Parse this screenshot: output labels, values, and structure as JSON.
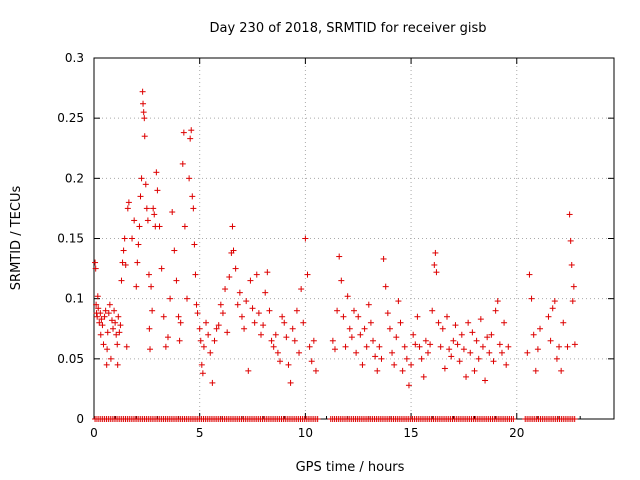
{
  "chart_data": {
    "type": "scatter",
    "title": "Day 230 of 2018, SRMTID for receiver gisb",
    "xlabel": "GPS time / hours",
    "ylabel": "SRMTID / TECUs",
    "xlim": [
      0,
      24.6
    ],
    "ylim": [
      0,
      0.3
    ],
    "xticks": [
      0,
      5,
      10,
      15,
      20
    ],
    "xtick_labels": [
      "0",
      "5",
      "10",
      "15",
      "20"
    ],
    "yticks": [
      0,
      0.05,
      0.1,
      0.15,
      0.2,
      0.25,
      0.3
    ],
    "ytick_labels": [
      "0",
      "0.05",
      "0.1",
      "0.15",
      "0.2",
      "0.25",
      "0.3"
    ],
    "grid": true,
    "marker": "+",
    "color": "#dd0000",
    "series": [
      {
        "name": "SRMTID",
        "points": [
          [
            0.05,
            0.13
          ],
          [
            0.08,
            0.125
          ],
          [
            0.1,
            0.095
          ],
          [
            0.12,
            0.088
          ],
          [
            0.15,
            0.085
          ],
          [
            0.18,
            0.102
          ],
          [
            0.2,
            0.092
          ],
          [
            0.25,
            0.08
          ],
          [
            0.3,
            0.088
          ],
          [
            0.32,
            0.07
          ],
          [
            0.35,
            0.083
          ],
          [
            0.4,
            0.078
          ],
          [
            0.45,
            0.062
          ],
          [
            0.5,
            0.085
          ],
          [
            0.55,
            0.09
          ],
          [
            0.6,
            0.045
          ],
          [
            0.62,
            0.058
          ],
          [
            0.65,
            0.072
          ],
          [
            0.7,
            0.088
          ],
          [
            0.75,
            0.095
          ],
          [
            0.8,
            0.05
          ],
          [
            0.85,
            0.082
          ],
          [
            0.9,
            0.075
          ],
          [
            0.95,
            0.09
          ],
          [
            1.0,
            0.08
          ],
          [
            1.05,
            0.07
          ],
          [
            1.1,
            0.062
          ],
          [
            1.12,
            0.045
          ],
          [
            1.15,
            0.085
          ],
          [
            1.2,
            0.072
          ],
          [
            1.25,
            0.078
          ],
          [
            1.3,
            0.115
          ],
          [
            1.35,
            0.13
          ],
          [
            1.4,
            0.14
          ],
          [
            1.45,
            0.15
          ],
          [
            1.5,
            0.128
          ],
          [
            1.55,
            0.06
          ],
          [
            1.6,
            0.175
          ],
          [
            1.65,
            0.18
          ],
          [
            1.8,
            0.15
          ],
          [
            1.9,
            0.165
          ],
          [
            2.0,
            0.11
          ],
          [
            2.05,
            0.13
          ],
          [
            2.1,
            0.145
          ],
          [
            2.15,
            0.16
          ],
          [
            2.2,
            0.185
          ],
          [
            2.25,
            0.2
          ],
          [
            2.3,
            0.272
          ],
          [
            2.32,
            0.262
          ],
          [
            2.35,
            0.255
          ],
          [
            2.38,
            0.25
          ],
          [
            2.4,
            0.235
          ],
          [
            2.45,
            0.195
          ],
          [
            2.5,
            0.175
          ],
          [
            2.55,
            0.165
          ],
          [
            2.6,
            0.12
          ],
          [
            2.62,
            0.075
          ],
          [
            2.65,
            0.058
          ],
          [
            2.7,
            0.11
          ],
          [
            2.75,
            0.09
          ],
          [
            2.8,
            0.175
          ],
          [
            2.85,
            0.17
          ],
          [
            2.9,
            0.16
          ],
          [
            2.95,
            0.205
          ],
          [
            3.0,
            0.19
          ],
          [
            3.1,
            0.16
          ],
          [
            3.2,
            0.125
          ],
          [
            3.3,
            0.085
          ],
          [
            3.4,
            0.06
          ],
          [
            3.5,
            0.068
          ],
          [
            3.6,
            0.1
          ],
          [
            3.7,
            0.172
          ],
          [
            3.8,
            0.14
          ],
          [
            3.9,
            0.115
          ],
          [
            4.0,
            0.085
          ],
          [
            4.05,
            0.065
          ],
          [
            4.1,
            0.08
          ],
          [
            4.2,
            0.212
          ],
          [
            4.25,
            0.238
          ],
          [
            4.3,
            0.16
          ],
          [
            4.4,
            0.1
          ],
          [
            4.5,
            0.2
          ],
          [
            4.55,
            0.233
          ],
          [
            4.6,
            0.24
          ],
          [
            4.65,
            0.185
          ],
          [
            4.7,
            0.175
          ],
          [
            4.75,
            0.145
          ],
          [
            4.8,
            0.12
          ],
          [
            4.85,
            0.095
          ],
          [
            4.9,
            0.088
          ],
          [
            5.0,
            0.075
          ],
          [
            5.05,
            0.065
          ],
          [
            5.1,
            0.045
          ],
          [
            5.15,
            0.038
          ],
          [
            5.2,
            0.06
          ],
          [
            5.3,
            0.08
          ],
          [
            5.4,
            0.07
          ],
          [
            5.5,
            0.055
          ],
          [
            5.6,
            0.03
          ],
          [
            5.7,
            0.065
          ],
          [
            5.8,
            0.075
          ],
          [
            5.9,
            0.078
          ],
          [
            6.0,
            0.095
          ],
          [
            6.1,
            0.088
          ],
          [
            6.2,
            0.108
          ],
          [
            6.3,
            0.072
          ],
          [
            6.4,
            0.118
          ],
          [
            6.5,
            0.138
          ],
          [
            6.55,
            0.16
          ],
          [
            6.6,
            0.14
          ],
          [
            6.7,
            0.125
          ],
          [
            6.8,
            0.095
          ],
          [
            6.9,
            0.105
          ],
          [
            7.0,
            0.085
          ],
          [
            7.1,
            0.075
          ],
          [
            7.2,
            0.098
          ],
          [
            7.3,
            0.04
          ],
          [
            7.4,
            0.115
          ],
          [
            7.5,
            0.092
          ],
          [
            7.6,
            0.08
          ],
          [
            7.7,
            0.12
          ],
          [
            7.8,
            0.088
          ],
          [
            7.9,
            0.07
          ],
          [
            8.0,
            0.078
          ],
          [
            8.1,
            0.105
          ],
          [
            8.2,
            0.122
          ],
          [
            8.3,
            0.09
          ],
          [
            8.4,
            0.065
          ],
          [
            8.5,
            0.06
          ],
          [
            8.6,
            0.07
          ],
          [
            8.7,
            0.055
          ],
          [
            8.8,
            0.048
          ],
          [
            8.9,
            0.085
          ],
          [
            9.0,
            0.08
          ],
          [
            9.1,
            0.068
          ],
          [
            9.2,
            0.045
          ],
          [
            9.3,
            0.03
          ],
          [
            9.4,
            0.075
          ],
          [
            9.5,
            0.065
          ],
          [
            9.6,
            0.09
          ],
          [
            9.7,
            0.055
          ],
          [
            9.8,
            0.108
          ],
          [
            9.9,
            0.08
          ],
          [
            10.0,
            0.15
          ],
          [
            10.1,
            0.12
          ],
          [
            10.2,
            0.06
          ],
          [
            10.3,
            0.048
          ],
          [
            10.4,
            0.065
          ],
          [
            10.5,
            0.04
          ],
          [
            11.3,
            0.065
          ],
          [
            11.4,
            0.058
          ],
          [
            11.5,
            0.09
          ],
          [
            11.6,
            0.135
          ],
          [
            11.7,
            0.115
          ],
          [
            11.8,
            0.085
          ],
          [
            11.9,
            0.06
          ],
          [
            12.0,
            0.102
          ],
          [
            12.1,
            0.075
          ],
          [
            12.2,
            0.068
          ],
          [
            12.3,
            0.09
          ],
          [
            12.4,
            0.055
          ],
          [
            12.5,
            0.085
          ],
          [
            12.6,
            0.07
          ],
          [
            12.7,
            0.045
          ],
          [
            12.8,
            0.075
          ],
          [
            12.9,
            0.06
          ],
          [
            13.0,
            0.095
          ],
          [
            13.1,
            0.08
          ],
          [
            13.2,
            0.065
          ],
          [
            13.3,
            0.052
          ],
          [
            13.4,
            0.04
          ],
          [
            13.5,
            0.06
          ],
          [
            13.6,
            0.05
          ],
          [
            13.7,
            0.133
          ],
          [
            13.8,
            0.11
          ],
          [
            13.9,
            0.088
          ],
          [
            14.0,
            0.075
          ],
          [
            14.1,
            0.055
          ],
          [
            14.2,
            0.045
          ],
          [
            14.3,
            0.068
          ],
          [
            14.4,
            0.098
          ],
          [
            14.5,
            0.08
          ],
          [
            14.6,
            0.04
          ],
          [
            14.7,
            0.06
          ],
          [
            14.8,
            0.05
          ],
          [
            14.9,
            0.028
          ],
          [
            15.0,
            0.045
          ],
          [
            15.1,
            0.07
          ],
          [
            15.2,
            0.062
          ],
          [
            15.3,
            0.085
          ],
          [
            15.4,
            0.06
          ],
          [
            15.5,
            0.05
          ],
          [
            15.6,
            0.035
          ],
          [
            15.7,
            0.065
          ],
          [
            15.8,
            0.055
          ],
          [
            15.9,
            0.062
          ],
          [
            16.0,
            0.09
          ],
          [
            16.1,
            0.128
          ],
          [
            16.15,
            0.138
          ],
          [
            16.2,
            0.122
          ],
          [
            16.3,
            0.08
          ],
          [
            16.4,
            0.06
          ],
          [
            16.5,
            0.075
          ],
          [
            16.6,
            0.042
          ],
          [
            16.7,
            0.085
          ],
          [
            16.8,
            0.058
          ],
          [
            16.9,
            0.052
          ],
          [
            17.0,
            0.065
          ],
          [
            17.1,
            0.078
          ],
          [
            17.2,
            0.062
          ],
          [
            17.3,
            0.048
          ],
          [
            17.4,
            0.07
          ],
          [
            17.5,
            0.058
          ],
          [
            17.6,
            0.035
          ],
          [
            17.7,
            0.08
          ],
          [
            17.8,
            0.055
          ],
          [
            17.9,
            0.072
          ],
          [
            18.0,
            0.04
          ],
          [
            18.1,
            0.065
          ],
          [
            18.2,
            0.05
          ],
          [
            18.3,
            0.083
          ],
          [
            18.4,
            0.06
          ],
          [
            18.5,
            0.032
          ],
          [
            18.6,
            0.068
          ],
          [
            18.7,
            0.055
          ],
          [
            18.8,
            0.07
          ],
          [
            18.9,
            0.048
          ],
          [
            19.0,
            0.09
          ],
          [
            19.1,
            0.098
          ],
          [
            19.2,
            0.062
          ],
          [
            19.3,
            0.055
          ],
          [
            19.4,
            0.08
          ],
          [
            19.5,
            0.045
          ],
          [
            19.6,
            0.06
          ],
          [
            20.5,
            0.055
          ],
          [
            20.6,
            0.12
          ],
          [
            20.7,
            0.1
          ],
          [
            20.8,
            0.07
          ],
          [
            20.9,
            0.04
          ],
          [
            21.0,
            0.058
          ],
          [
            21.1,
            0.075
          ],
          [
            21.5,
            0.085
          ],
          [
            21.6,
            0.065
          ],
          [
            21.7,
            0.092
          ],
          [
            21.8,
            0.098
          ],
          [
            21.9,
            0.05
          ],
          [
            22.0,
            0.06
          ],
          [
            22.1,
            0.04
          ],
          [
            22.2,
            0.08
          ],
          [
            22.4,
            0.06
          ],
          [
            22.5,
            0.17
          ],
          [
            22.55,
            0.148
          ],
          [
            22.6,
            0.128
          ],
          [
            22.65,
            0.098
          ],
          [
            22.7,
            0.11
          ],
          [
            22.75,
            0.062
          ]
        ]
      }
    ]
  }
}
